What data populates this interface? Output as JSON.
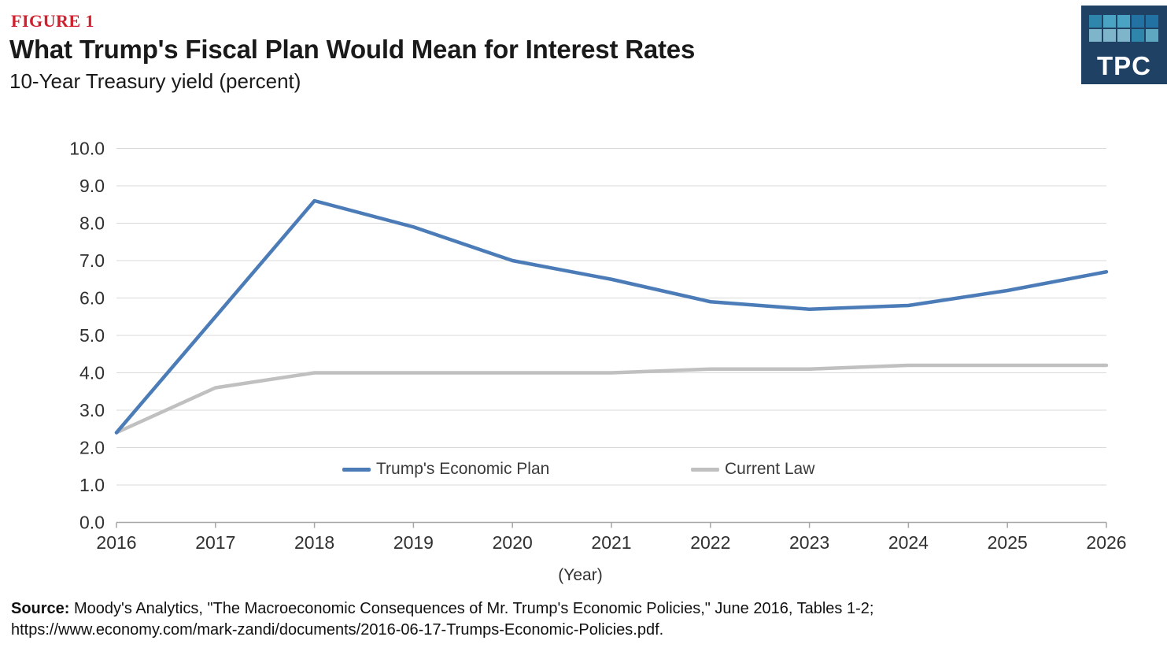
{
  "header": {
    "figure_label": "FIGURE 1",
    "figure_label_color": "#D0202E"
  },
  "logo": {
    "text": "TPC",
    "bg_color": "#1E4164",
    "square_colors_top": [
      "#2E86AC",
      "#4BA3C3",
      "#4BA3C3",
      "#2272A4",
      "#2272A4"
    ],
    "square_colors_bottom": [
      "#7FB5CB",
      "#7FB5CB",
      "#7FB5CB",
      "#2E86AC",
      "#5FA8C2"
    ]
  },
  "chart_data": {
    "type": "line",
    "title": "What Trump's Fiscal Plan Would Mean for Interest Rates",
    "subtitle": "10-Year Treasury yield (percent)",
    "xlabel": "(Year)",
    "categories": [
      "2016",
      "2017",
      "2018",
      "2019",
      "2020",
      "2021",
      "2022",
      "2023",
      "2024",
      "2025",
      "2026"
    ],
    "series": [
      {
        "name": "Trump's Economic Plan",
        "color": "#4B7CB8",
        "values": [
          2.4,
          5.5,
          8.6,
          7.9,
          7.0,
          6.5,
          5.9,
          5.7,
          5.8,
          6.2,
          6.7
        ]
      },
      {
        "name": "Current Law",
        "color": "#C0C0C0",
        "values": [
          2.4,
          3.6,
          4.0,
          4.0,
          4.0,
          4.0,
          4.1,
          4.1,
          4.2,
          4.2,
          4.2
        ]
      }
    ],
    "ylim": [
      0,
      10
    ],
    "ytick_labels": [
      "0.0",
      "1.0",
      "2.0",
      "3.0",
      "4.0",
      "5.0",
      "6.0",
      "7.0",
      "8.0",
      "9.0",
      "10.0"
    ],
    "grid": "horizontal",
    "grid_color": "#D9D9D9",
    "axis_color": "#A6A6A6",
    "legend_position": "inside-bottom"
  },
  "source": {
    "label": "Source:",
    "text": " Moody's Analytics, \"The Macroeconomic Consequences of Mr. Trump's Economic Policies,\" June 2016, Tables 1-2;",
    "url": "https://www.economy.com/mark-zandi/documents/2016-06-17-Trumps-Economic-Policies.pdf."
  }
}
